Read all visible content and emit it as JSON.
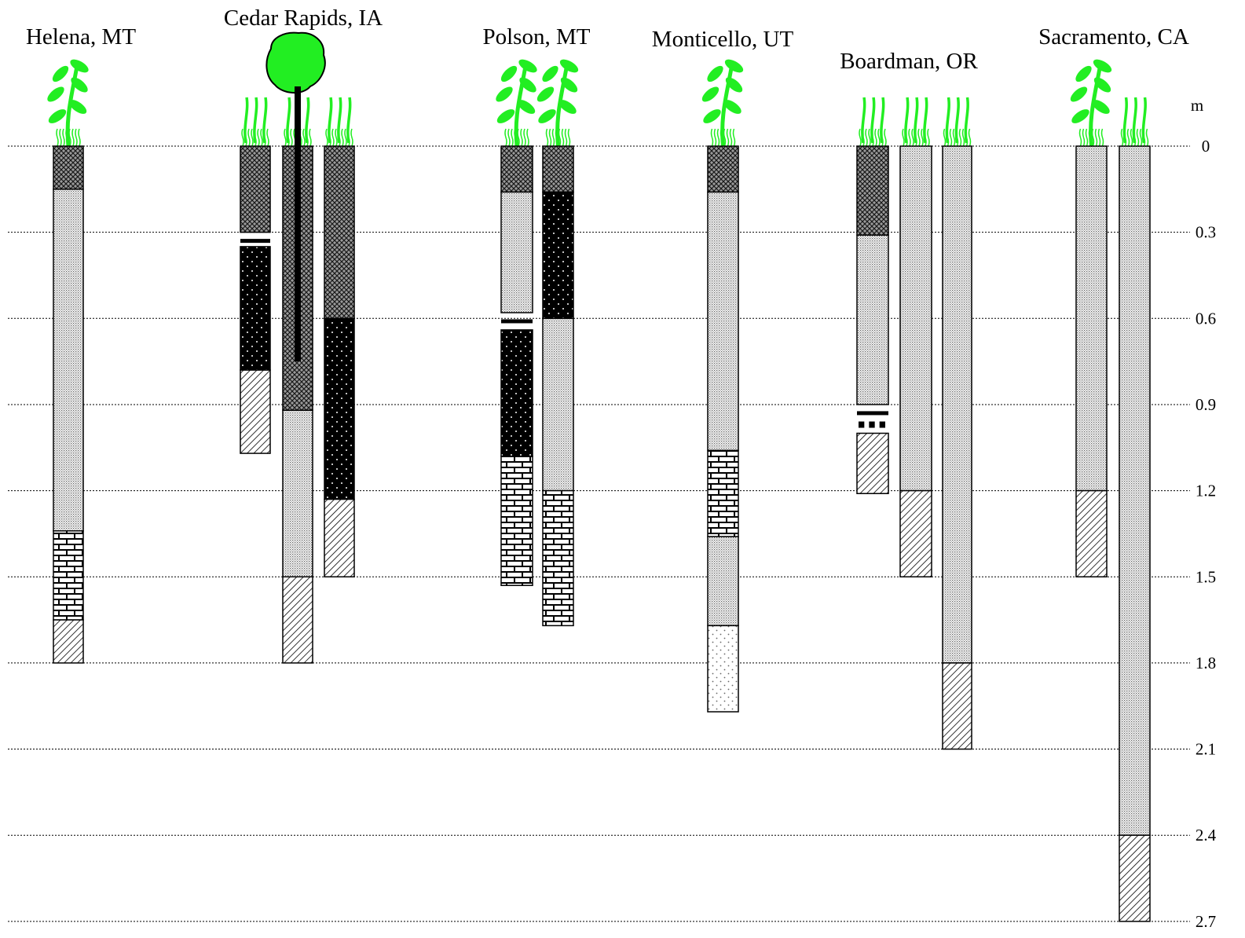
{
  "colors": {
    "vegetation": "#22ee22",
    "outline": "#000000",
    "background": "#ffffff"
  },
  "depth_axis": {
    "unit": "m",
    "ticks": [
      "0",
      "0.3",
      "0.6",
      "0.9",
      "1.2",
      "1.5",
      "1.8",
      "2.1",
      "2.4",
      "2.7"
    ]
  },
  "sites": [
    {
      "name": "Helena, MT",
      "columns": [
        {
          "vegetation": "forb",
          "layers": [
            {
              "from": 0,
              "to": 0.15,
              "pattern": "crosshatch"
            },
            {
              "from": 0.15,
              "to": 1.34,
              "pattern": "finestipple"
            },
            {
              "from": 1.34,
              "to": 1.65,
              "pattern": "brick"
            },
            {
              "from": 1.65,
              "to": 1.8,
              "pattern": "hatch"
            }
          ]
        }
      ]
    },
    {
      "name": "Cedar Rapids, IA",
      "tree_root_depth": 0.75,
      "columns": [
        {
          "vegetation": "grass",
          "layers": [
            {
              "from": 0,
              "to": 0.3,
              "pattern": "crosshatch"
            },
            {
              "marker": "band",
              "at": 0.33
            },
            {
              "from": 0.35,
              "to": 0.78,
              "pattern": "darkdots"
            },
            {
              "from": 0.78,
              "to": 1.07,
              "pattern": "hatch"
            }
          ]
        },
        {
          "vegetation": "grass",
          "layers": [
            {
              "from": 0,
              "to": 0.92,
              "pattern": "crosshatch"
            },
            {
              "from": 0.92,
              "to": 1.5,
              "pattern": "finestipple"
            },
            {
              "from": 1.5,
              "to": 1.8,
              "pattern": "hatch"
            }
          ]
        },
        {
          "vegetation": "grass",
          "layers": [
            {
              "from": 0,
              "to": 0.6,
              "pattern": "crosshatch"
            },
            {
              "from": 0.6,
              "to": 1.23,
              "pattern": "darkdots"
            },
            {
              "from": 1.23,
              "to": 1.5,
              "pattern": "hatch"
            }
          ]
        }
      ]
    },
    {
      "name": "Polson, MT",
      "columns": [
        {
          "vegetation": "forb",
          "layers": [
            {
              "from": 0,
              "to": 0.16,
              "pattern": "crosshatch"
            },
            {
              "from": 0.16,
              "to": 0.58,
              "pattern": "finestipple"
            },
            {
              "marker": "band",
              "at": 0.61
            },
            {
              "from": 0.64,
              "to": 1.08,
              "pattern": "darkdots"
            },
            {
              "from": 1.08,
              "to": 1.53,
              "pattern": "brick"
            }
          ]
        },
        {
          "vegetation": "forb",
          "layers": [
            {
              "from": 0,
              "to": 0.16,
              "pattern": "crosshatch"
            },
            {
              "from": 0.16,
              "to": 0.6,
              "pattern": "darkdots"
            },
            {
              "from": 0.6,
              "to": 1.2,
              "pattern": "finestipple"
            },
            {
              "from": 1.2,
              "to": 1.67,
              "pattern": "brick"
            }
          ]
        }
      ]
    },
    {
      "name": "Monticello, UT",
      "columns": [
        {
          "vegetation": "forb",
          "layers": [
            {
              "from": 0,
              "to": 0.16,
              "pattern": "crosshatch"
            },
            {
              "from": 0.16,
              "to": 1.06,
              "pattern": "finestipple"
            },
            {
              "from": 1.06,
              "to": 1.36,
              "pattern": "brick"
            },
            {
              "from": 1.36,
              "to": 1.67,
              "pattern": "finestipple"
            },
            {
              "from": 1.67,
              "to": 1.97,
              "pattern": "sparsedots"
            }
          ]
        }
      ]
    },
    {
      "name": "Boardman, OR",
      "columns": [
        {
          "vegetation": "grass",
          "layers": [
            {
              "from": 0,
              "to": 0.31,
              "pattern": "crosshatch"
            },
            {
              "from": 0.31,
              "to": 0.9,
              "pattern": "finestipple"
            },
            {
              "marker": "band",
              "at": 0.93
            },
            {
              "marker": "dashes",
              "at": 0.97
            },
            {
              "from": 1.0,
              "to": 1.21,
              "pattern": "hatch"
            }
          ]
        },
        {
          "vegetation": "grass",
          "layers": [
            {
              "from": 0,
              "to": 1.2,
              "pattern": "finestipple"
            },
            {
              "from": 1.2,
              "to": 1.5,
              "pattern": "hatch"
            }
          ]
        },
        {
          "vegetation": "grass",
          "layers": [
            {
              "from": 0,
              "to": 1.8,
              "pattern": "finestipple"
            },
            {
              "from": 1.8,
              "to": 2.1,
              "pattern": "hatch"
            }
          ]
        }
      ]
    },
    {
      "name": "Sacramento, CA",
      "columns": [
        {
          "vegetation": "forb",
          "layers": [
            {
              "from": 0,
              "to": 1.2,
              "pattern": "finestipple"
            },
            {
              "from": 1.2,
              "to": 1.5,
              "pattern": "hatch"
            }
          ]
        },
        {
          "vegetation": "grass",
          "layers": [
            {
              "from": 0,
              "to": 2.4,
              "pattern": "finestipple"
            },
            {
              "from": 2.4,
              "to": 2.7,
              "pattern": "hatch"
            }
          ]
        }
      ]
    }
  ]
}
